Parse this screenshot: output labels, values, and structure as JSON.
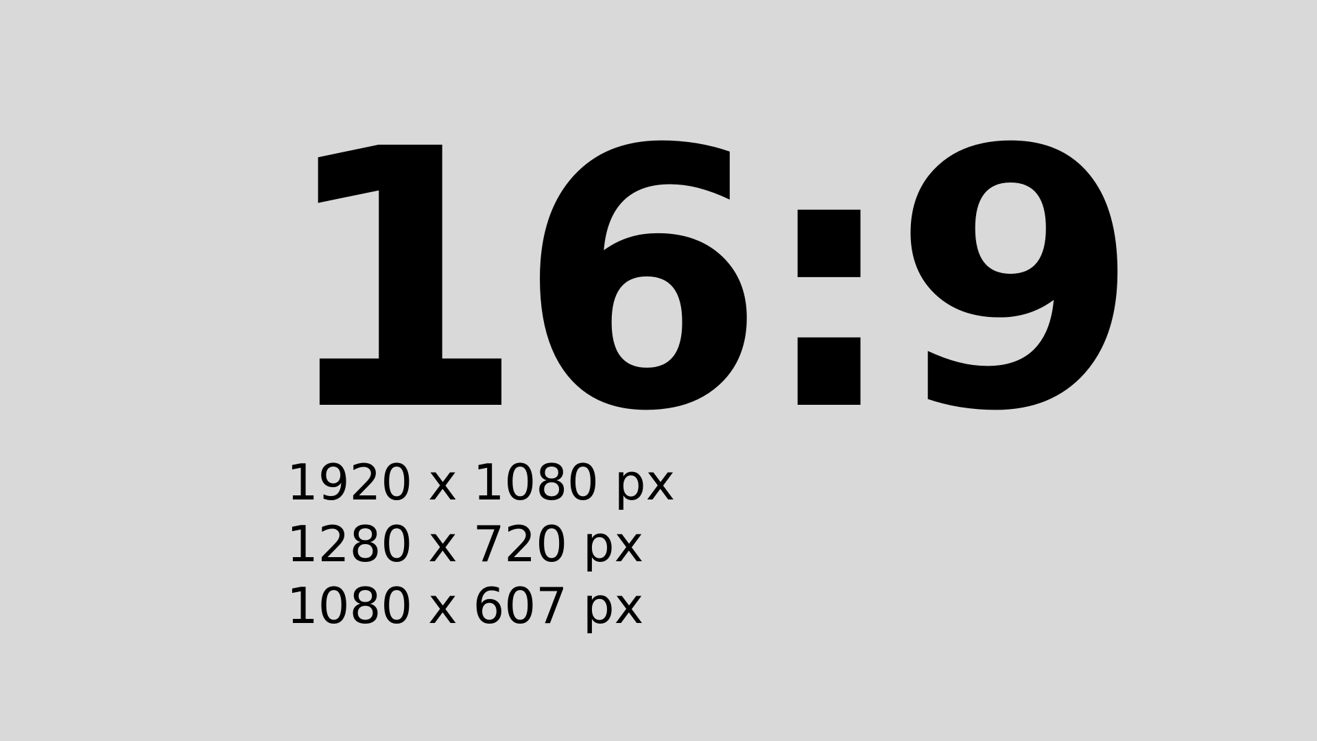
{
  "ratio_heading": "16:9",
  "resolutions": [
    "1920 x 1080 px",
    "1280 x 720 px",
    "1080 x 607 px"
  ],
  "colors": {
    "background": "#d9d9d9",
    "text": "#000000"
  }
}
